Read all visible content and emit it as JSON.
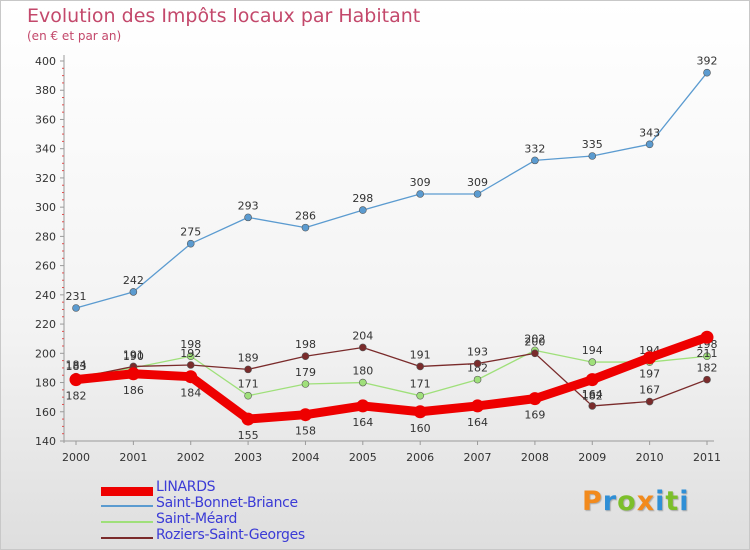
{
  "header": {
    "title": "Evolution des Impôts locaux par Habitant",
    "subtitle": "(en € et par an)"
  },
  "brand": {
    "letters": [
      "P",
      "r",
      "o",
      "x",
      "i",
      "t",
      "i"
    ],
    "colors": [
      "#f28a1c",
      "#2f8fd6",
      "#7cbf2a",
      "#f28a1c",
      "#2f8fd6",
      "#7cbf2a",
      "#2f8fd6"
    ]
  },
  "chart_data": {
    "type": "line",
    "title": "Evolution des Impôts locaux par Habitant",
    "subtitle": "(en € et par an)",
    "xlabel": "",
    "ylabel": "",
    "categories": [
      "2000",
      "2001",
      "2002",
      "2003",
      "2004",
      "2005",
      "2006",
      "2007",
      "2008",
      "2009",
      "2010",
      "2011"
    ],
    "ylim": [
      140,
      400
    ],
    "yticks": [
      140,
      160,
      180,
      200,
      220,
      240,
      260,
      280,
      300,
      320,
      340,
      360,
      380,
      400
    ],
    "grid": false,
    "legend_position": "bottom-left",
    "series": [
      {
        "name": "Saint-Bonnet-Briance",
        "color": "#5b9bd0",
        "values": [
          231,
          242,
          275,
          293,
          286,
          298,
          309,
          309,
          332,
          335,
          343,
          392
        ],
        "labels": [
          "231",
          "242",
          "275",
          "293",
          "286",
          "298",
          "309",
          "309",
          "332",
          "335",
          "343",
          "392"
        ]
      },
      {
        "name": "Saint-Méard",
        "color": "#9fe07a",
        "values": [
          184,
          190,
          198,
          171,
          179,
          180,
          171,
          182,
          202,
          194,
          194,
          198
        ],
        "labels": [
          "184",
          "190",
          "198",
          "171",
          "179",
          "180",
          "171",
          "182",
          "202",
          "194",
          "194",
          "198"
        ]
      },
      {
        "name": "Roziers-Saint-Georges",
        "color": "#7a2b2b",
        "values": [
          183,
          191,
          192,
          189,
          198,
          204,
          191,
          193,
          200,
          164,
          167,
          182
        ],
        "labels": [
          "183",
          "191",
          "192",
          "189",
          "198",
          "204",
          "191",
          "193",
          "200",
          "164",
          "167",
          "182"
        ]
      },
      {
        "name": "LINARDS",
        "color": "#ee0000",
        "values": [
          182,
          186,
          184,
          155,
          158,
          164,
          160,
          164,
          169,
          182,
          197,
          211
        ],
        "labels": [
          "182",
          "186",
          "184",
          "155",
          "158",
          "164",
          "160",
          "164",
          "169",
          "182",
          "197",
          "211"
        ]
      }
    ],
    "legend_order": [
      "LINARDS",
      "Saint-Bonnet-Briance",
      "Saint-Méard",
      "Roziers-Saint-Georges"
    ]
  }
}
